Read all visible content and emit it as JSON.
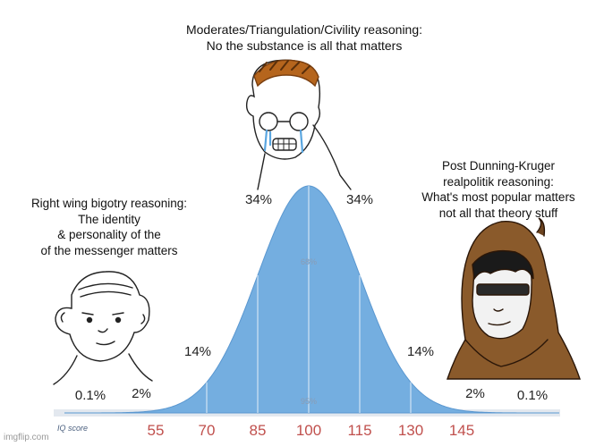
{
  "captions": {
    "top": [
      "Moderates/Triangulation/Civility reasoning:",
      "No the substance is all that matters"
    ],
    "left": [
      "Right wing bigotry reasoning:",
      "The identity",
      "& personality of the",
      "of the messenger matters"
    ],
    "right": [
      "Post Dunning-Kruger",
      "realpolitik reasoning:",
      "What's most popular matters",
      "not all that theory stuff"
    ]
  },
  "chart": {
    "axis_label": "IQ score",
    "ticks": [
      "55",
      "70",
      "85",
      "100",
      "115",
      "130",
      "145"
    ],
    "percents": {
      "far_left": "0.1%",
      "left_2": "2%",
      "left_14": "14%",
      "left_34": "34%",
      "right_34": "34%",
      "right_14": "14%",
      "right_2": "2%",
      "far_right": "0.1%"
    },
    "inner_labels": {
      "p68": "68%",
      "p95": "95%"
    }
  },
  "colors": {
    "curve_fill": "#74aee0",
    "curve_stroke": "#5a97d0",
    "tick_text": "#c0504d"
  },
  "watermark": "imgflip.com"
}
